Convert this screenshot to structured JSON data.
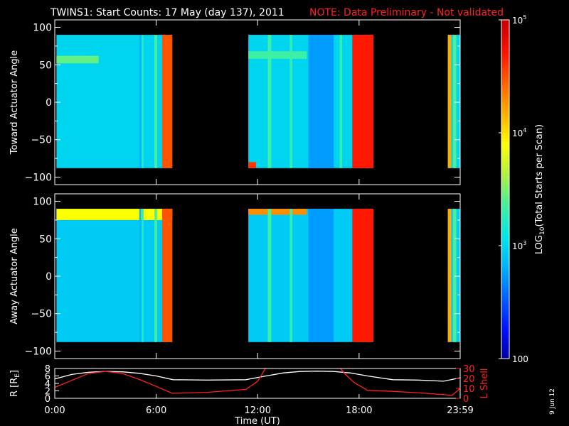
{
  "header": {
    "title": "TWINS1: Start Counts: 17 May (day 137), 2011",
    "note": "NOTE: Data Preliminary - Not validated"
  },
  "stamp": "9 Jun 12",
  "colors": {
    "background": "#000000",
    "text": "#ffffff",
    "note": "#ff2020",
    "r_line": "#ffffff",
    "lshell_line": "#ff2020"
  },
  "colorbar": {
    "label": "LOG10(Total Starts per Scan)",
    "label_parts": {
      "pre": "LOG",
      "sub": "10",
      "post": "(Total Starts per Scan)"
    },
    "scale": "log",
    "range": [
      100,
      100000
    ],
    "ticks": [
      {
        "value": 100000,
        "label": "10",
        "sup": "5"
      },
      {
        "value": 10000,
        "label": "10",
        "sup": "4"
      },
      {
        "value": 1000,
        "label": "10",
        "sup": "3"
      },
      {
        "value": 100,
        "label": "100",
        "sup": ""
      }
    ],
    "palette": [
      "#0000a0",
      "#0010ff",
      "#0060ff",
      "#00b0ff",
      "#00e8e8",
      "#40f0a0",
      "#b0f040",
      "#ffff00",
      "#ffb000",
      "#ff6000",
      "#ff1000",
      "#c80000"
    ]
  },
  "time_axis": {
    "label": "Time (UT)",
    "range_hours": [
      0,
      23.98
    ],
    "ticks": [
      {
        "hour": 0,
        "label": "0:00"
      },
      {
        "hour": 6,
        "label": "6:00"
      },
      {
        "hour": 12,
        "label": "12:00"
      },
      {
        "hour": 18,
        "label": "18:00"
      },
      {
        "hour": 23.98,
        "label": "23:59"
      }
    ]
  },
  "chart_data": [
    {
      "type": "heatmap",
      "id": "toward",
      "ylabel": "Toward Actuator Angle",
      "ylim": [
        -110,
        110
      ],
      "yticks": [
        100,
        50,
        0,
        -50,
        -100
      ],
      "angle_range": [
        -88,
        90
      ],
      "x_unit": "hours UT",
      "data_intervals_hours": [
        [
          0.1,
          6.95
        ],
        [
          11.45,
          18.85
        ],
        [
          23.25,
          23.98
        ]
      ],
      "background_log10_counts": 3.0,
      "features": [
        {
          "kind": "time_band",
          "hours": [
            5.0,
            5.12
          ],
          "log10": 2.85
        },
        {
          "kind": "time_band",
          "hours": [
            5.15,
            5.25
          ],
          "log10": 3.25
        },
        {
          "kind": "time_band",
          "hours": [
            5.9,
            6.05
          ],
          "log10": 3.4
        },
        {
          "kind": "time_band",
          "hours": [
            6.35,
            6.95
          ],
          "log10": 4.5
        },
        {
          "kind": "time_band",
          "hours": [
            12.6,
            12.8
          ],
          "log10": 3.35
        },
        {
          "kind": "time_band",
          "hours": [
            13.9,
            14.05
          ],
          "log10": 3.3
        },
        {
          "kind": "time_band",
          "hours": [
            15.0,
            16.5
          ],
          "log10": 2.75
        },
        {
          "kind": "time_band",
          "hours": [
            16.85,
            17.0
          ],
          "log10": 3.3
        },
        {
          "kind": "time_band",
          "hours": [
            17.6,
            18.85
          ],
          "log10": 4.7
        },
        {
          "kind": "time_band",
          "hours": [
            23.25,
            23.45
          ],
          "log10": 4.2
        },
        {
          "kind": "time_band",
          "hours": [
            23.55,
            23.75
          ],
          "log10": 3.4
        },
        {
          "kind": "angle_band",
          "hours": [
            0.1,
            2.6
          ],
          "angles": [
            52,
            62
          ],
          "log10": 3.45
        },
        {
          "kind": "angle_band",
          "hours": [
            11.45,
            14.9
          ],
          "angles": [
            58,
            68
          ],
          "log10": 3.35
        },
        {
          "kind": "angle_band",
          "hours": [
            11.45,
            11.9
          ],
          "angles": [
            -88,
            -80
          ],
          "log10": 4.6
        }
      ]
    },
    {
      "type": "heatmap",
      "id": "away",
      "ylabel": "Away Actuator Angle",
      "ylim": [
        -110,
        110
      ],
      "yticks": [
        100,
        50,
        0,
        -50,
        -100
      ],
      "angle_range": [
        -88,
        90
      ],
      "x_unit": "hours UT",
      "data_intervals_hours": [
        [
          0.1,
          6.95
        ],
        [
          11.45,
          18.85
        ],
        [
          23.25,
          23.98
        ]
      ],
      "background_log10_counts": 2.95,
      "features": [
        {
          "kind": "angle_band",
          "hours": [
            0.1,
            6.95
          ],
          "angles": [
            75,
            90
          ],
          "log10": 3.9
        },
        {
          "kind": "angle_band",
          "hours": [
            11.45,
            14.9
          ],
          "angles": [
            82,
            90
          ],
          "log10": 4.3
        },
        {
          "kind": "time_band",
          "hours": [
            5.0,
            5.12
          ],
          "log10": 2.85
        },
        {
          "kind": "time_band",
          "hours": [
            5.15,
            5.25
          ],
          "log10": 3.25
        },
        {
          "kind": "time_band",
          "hours": [
            5.9,
            6.05
          ],
          "log10": 3.4
        },
        {
          "kind": "time_band",
          "hours": [
            6.35,
            6.95
          ],
          "log10": 4.5
        },
        {
          "kind": "time_band",
          "hours": [
            12.6,
            12.8
          ],
          "log10": 3.35
        },
        {
          "kind": "time_band",
          "hours": [
            13.9,
            14.05
          ],
          "log10": 3.3
        },
        {
          "kind": "time_band",
          "hours": [
            15.0,
            16.5
          ],
          "log10": 2.75
        },
        {
          "kind": "time_band",
          "hours": [
            17.6,
            18.85
          ],
          "log10": 4.7
        },
        {
          "kind": "time_band",
          "hours": [
            23.25,
            23.45
          ],
          "log10": 4.2
        },
        {
          "kind": "time_band",
          "hours": [
            23.55,
            23.75
          ],
          "log10": 3.4
        }
      ]
    },
    {
      "type": "line",
      "id": "orbit",
      "ylabel": "R [RE]",
      "ylabel_parts": {
        "pre": "R [R",
        "sub": "E",
        "post": "]"
      },
      "ylim": [
        0,
        8
      ],
      "yticks": [
        0,
        2,
        4,
        6,
        8
      ],
      "y2label": "L Shell",
      "y2lim": [
        0,
        30
      ],
      "y2ticks": [
        0,
        10,
        20,
        30
      ],
      "series": [
        {
          "name": "R [RE]",
          "axis": "left",
          "color": "#ffffff",
          "x": [
            0.0,
            1.0,
            2.0,
            3.0,
            4.0,
            5.0,
            6.0,
            7.0,
            9.0,
            11.3,
            12.5,
            13.5,
            14.5,
            15.5,
            16.5,
            17.5,
            18.5,
            20.0,
            21.5,
            23.0,
            23.98
          ],
          "y": [
            5.2,
            6.4,
            7.0,
            7.2,
            7.1,
            6.7,
            6.0,
            5.0,
            4.9,
            5.0,
            6.0,
            6.8,
            7.2,
            7.3,
            7.2,
            6.8,
            6.0,
            5.0,
            4.9,
            4.6,
            5.5
          ]
        },
        {
          "name": "L Shell",
          "axis": "right",
          "color": "#ff2020",
          "x": [
            0.0,
            1.0,
            2.0,
            3.0,
            4.0,
            5.0,
            6.0,
            6.95,
            9.0,
            11.3,
            12.0,
            12.6,
            16.7,
            17.2,
            17.7,
            18.5,
            20.0,
            22.0,
            23.5,
            23.98
          ],
          "y": [
            11,
            18,
            25,
            27,
            25,
            19,
            12,
            5,
            6,
            9,
            17,
            34,
            34,
            24,
            16,
            8,
            7,
            5,
            3,
            10
          ]
        }
      ]
    }
  ]
}
